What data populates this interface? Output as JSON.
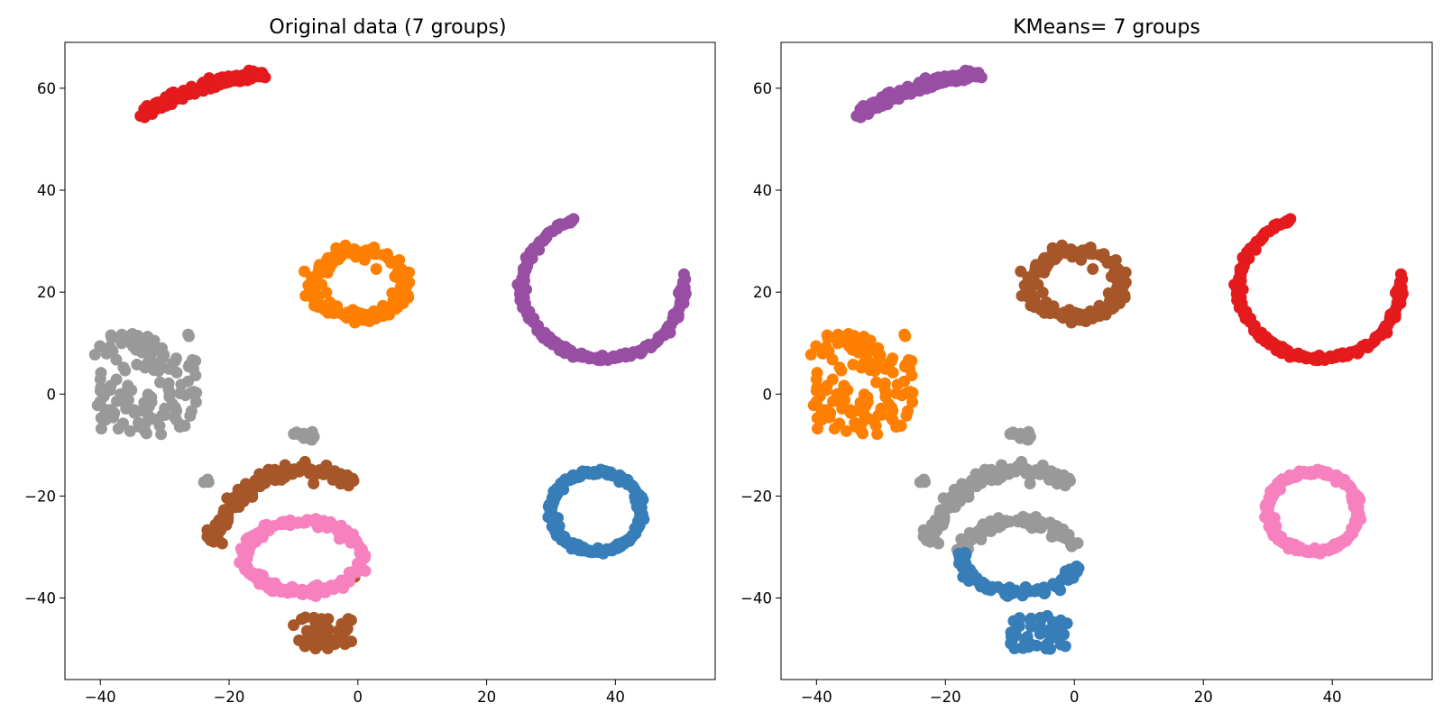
{
  "chart_data": [
    {
      "type": "scatter",
      "title": "Original data (7 groups)",
      "xlabel": "",
      "ylabel": "",
      "xlim": [
        -45.5,
        55.5
      ],
      "ylim": [
        -56,
        69
      ],
      "xticks": [
        -40,
        -20,
        0,
        20,
        40
      ],
      "yticks": [
        -40,
        -20,
        0,
        20,
        40,
        60
      ],
      "xtick_labels": [
        "−40",
        "−20",
        "0",
        "20",
        "40"
      ],
      "ytick_labels": [
        "−40",
        "−20",
        "0",
        "20",
        "40",
        "60"
      ],
      "grid": false,
      "legend": "none",
      "groups": [
        {
          "color": "#e41a1c",
          "shape": "arc",
          "cx": -10,
          "cy": 20,
          "rx": 40,
          "ry": 43,
          "a0": 97,
          "a1": 126,
          "noise": 0.8,
          "n": 150
        },
        {
          "color": "#ff7f00",
          "shape": "ring",
          "cx": 0,
          "cy": 21.5,
          "rx": 7,
          "ry": 6.5,
          "noise": 1.2,
          "n": 140
        },
        {
          "color": "#984ea3",
          "shape": "arc",
          "cx": 38,
          "cy": 21,
          "rx": 12.5,
          "ry": 14,
          "a0": 110,
          "a1": 368,
          "noise": 0.5,
          "n": 180
        },
        {
          "color": "#999999",
          "shape": "blob",
          "x0": -41,
          "x1": -25,
          "y0": -8,
          "y1": 12,
          "n": 130
        },
        {
          "color": "#999999",
          "shape": "blob",
          "x0": -10,
          "x1": -6,
          "y0": -9,
          "y1": -6.5,
          "n": 12
        },
        {
          "color": "#999999",
          "shape": "blob",
          "x0": -24,
          "x1": -23,
          "y0": -17.5,
          "y1": -16.5,
          "n": 3
        },
        {
          "color": "#377eb8",
          "shape": "ring",
          "cx": 37,
          "cy": -23,
          "rx": 7,
          "ry": 7.8,
          "noise": 0.5,
          "n": 210
        },
        {
          "color": "#a65628",
          "shape": "arc",
          "cx": -8,
          "cy": -33,
          "rx": 14.5,
          "ry": 18,
          "a0": 60,
          "a1": 170,
          "noise": 1,
          "n": 120
        },
        {
          "color": "#a65628",
          "shape": "blob",
          "x0": -10,
          "x1": -1,
          "y0": -50,
          "y1": -43.5,
          "n": 50
        },
        {
          "color": "#a65628",
          "shape": "blob",
          "x0": -0.5,
          "x1": -0.5,
          "y0": -36,
          "y1": -35.5,
          "n": 1
        },
        {
          "color": "#f781bf",
          "shape": "ring",
          "cx": -8.5,
          "cy": -32,
          "rx": 9,
          "ry": 7,
          "a0": 0,
          "a1": 345,
          "noise": 0.8,
          "n": 170
        }
      ]
    },
    {
      "type": "scatter",
      "title": "KMeans= 7 groups",
      "xlabel": "",
      "ylabel": "",
      "xlim": [
        -45.5,
        55.5
      ],
      "ylim": [
        -56,
        69
      ],
      "xticks": [
        -40,
        -20,
        0,
        20,
        40
      ],
      "yticks": [
        -40,
        -20,
        0,
        20,
        40,
        60
      ],
      "xtick_labels": [
        "−40",
        "−20",
        "0",
        "20",
        "40"
      ],
      "ytick_labels": [
        "−40",
        "−20",
        "0",
        "20",
        "40",
        "60"
      ],
      "grid": false,
      "legend": "none",
      "groups": [
        {
          "color": "#984ea3",
          "shape": "arc",
          "cx": -10,
          "cy": 20,
          "rx": 40,
          "ry": 43,
          "a0": 97,
          "a1": 126,
          "noise": 0.8,
          "n": 150
        },
        {
          "color": "#a65628",
          "shape": "ring",
          "cx": 0,
          "cy": 21.5,
          "rx": 7,
          "ry": 6.5,
          "noise": 1.2,
          "n": 140
        },
        {
          "color": "#e41a1c",
          "shape": "arc",
          "cx": 38,
          "cy": 21,
          "rx": 12.5,
          "ry": 14,
          "a0": 110,
          "a1": 368,
          "noise": 0.5,
          "n": 180
        },
        {
          "color": "#ff7f00",
          "shape": "blob",
          "x0": -41,
          "x1": -25,
          "y0": -8,
          "y1": 12,
          "n": 130
        },
        {
          "color": "#999999",
          "shape": "blob",
          "x0": -10,
          "x1": -6,
          "y0": -9,
          "y1": -6.5,
          "n": 12
        },
        {
          "color": "#999999",
          "shape": "blob",
          "x0": -24,
          "x1": -23,
          "y0": -17.5,
          "y1": -16.5,
          "n": 3
        },
        {
          "color": "#f781bf",
          "shape": "ring",
          "cx": 37,
          "cy": -23,
          "rx": 7,
          "ry": 7.8,
          "noise": 0.5,
          "n": 210
        },
        {
          "color": "#999999",
          "shape": "arc",
          "cx": -8,
          "cy": -33,
          "rx": 14.5,
          "ry": 18,
          "a0": 60,
          "a1": 170,
          "noise": 1,
          "n": 120
        },
        {
          "color": "#999999",
          "shape": "ring",
          "cx": -8.5,
          "cy": -32,
          "rx": 9,
          "ry": 7,
          "a0": 20,
          "a1": 170,
          "noise": 0.8,
          "n": 80
        },
        {
          "color": "#377eb8",
          "shape": "ring",
          "cx": -8.5,
          "cy": -32,
          "rx": 9,
          "ry": 7,
          "a0": 170,
          "a1": 350,
          "noise": 0.8,
          "n": 90
        },
        {
          "color": "#377eb8",
          "shape": "blob",
          "x0": -10,
          "x1": -1,
          "y0": -50,
          "y1": -43.5,
          "n": 50
        },
        {
          "color": "#377eb8",
          "shape": "blob",
          "x0": -0.5,
          "x1": -0.5,
          "y0": -36,
          "y1": -35.5,
          "n": 1
        }
      ]
    }
  ]
}
